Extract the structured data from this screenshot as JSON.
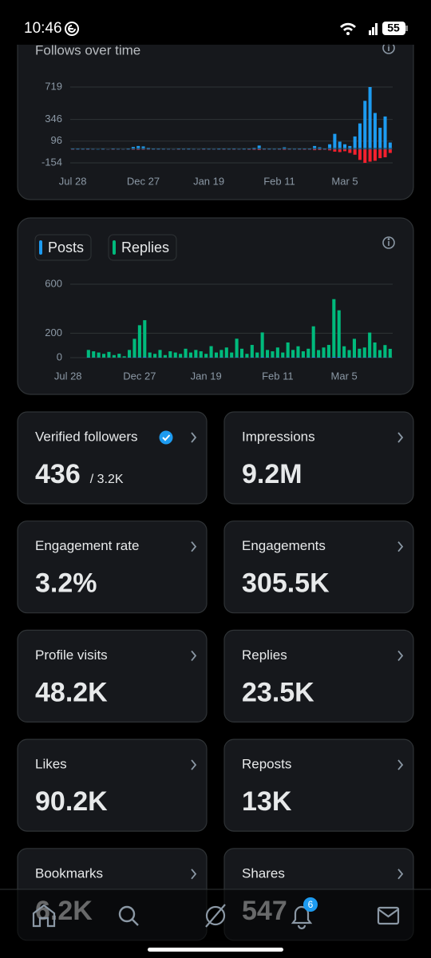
{
  "status": {
    "time": "10:46",
    "battery": "55"
  },
  "follows_chart": {
    "type": "bar",
    "title": "Follows over time",
    "categories": [
      "Jul 28",
      null,
      null,
      null,
      null,
      null,
      null,
      null,
      null,
      null,
      null,
      null,
      null,
      null,
      "Dec 27",
      null,
      null,
      null,
      null,
      null,
      null,
      null,
      null,
      null,
      null,
      null,
      null,
      "Jan 19",
      null,
      null,
      null,
      null,
      null,
      null,
      null,
      null,
      null,
      null,
      null,
      null,
      null,
      "Feb 11",
      null,
      null,
      null,
      null,
      null,
      null,
      null,
      null,
      null,
      null,
      null,
      null,
      "Mar 5",
      null,
      null,
      null,
      null,
      null,
      null,
      null,
      null,
      null
    ],
    "series": [
      {
        "color": "#1d9bf0",
        "values": [
          10,
          8,
          6,
          12,
          5,
          4,
          6,
          3,
          15,
          5,
          4,
          8,
          30,
          40,
          35,
          20,
          10,
          8,
          6,
          5,
          4,
          12,
          6,
          8,
          5,
          4,
          10,
          6,
          5,
          8,
          12,
          6,
          10,
          5,
          8,
          15,
          20,
          45,
          12,
          8,
          6,
          10,
          25,
          8,
          6,
          10,
          15,
          12,
          40,
          25,
          10,
          60,
          180,
          90,
          60,
          40,
          150,
          300,
          560,
          719,
          420,
          250,
          380,
          80
        ]
      },
      {
        "color": "#f4212e",
        "values": [
          -2,
          -1,
          -1,
          -2,
          -1,
          0,
          -1,
          -1,
          -2,
          -1,
          -1,
          -1,
          -3,
          -4,
          -3,
          -2,
          -1,
          -1,
          -1,
          -1,
          -1,
          -2,
          -1,
          -1,
          -1,
          -1,
          -2,
          -1,
          -1,
          -1,
          -2,
          -1,
          -2,
          -1,
          -1,
          -3,
          -4,
          -6,
          -2,
          -1,
          -1,
          -2,
          -4,
          -2,
          -1,
          -2,
          -3,
          -2,
          -8,
          -6,
          -3,
          -10,
          -25,
          -30,
          -20,
          -40,
          -60,
          -120,
          -154,
          -140,
          -130,
          -100,
          -90,
          -40
        ]
      }
    ],
    "ylim": [
      -154,
      719
    ],
    "yticks": [
      719,
      346,
      96,
      -154
    ],
    "grid": true
  },
  "posts_chart": {
    "type": "bar",
    "categories": [
      "Jul 28",
      null,
      null,
      null,
      null,
      null,
      null,
      null,
      null,
      null,
      null,
      null,
      null,
      null,
      "Dec 27",
      null,
      null,
      null,
      null,
      null,
      null,
      null,
      null,
      null,
      null,
      null,
      null,
      "Jan 19",
      null,
      null,
      null,
      null,
      null,
      null,
      null,
      null,
      null,
      null,
      null,
      null,
      null,
      "Feb 11",
      null,
      null,
      null,
      null,
      null,
      null,
      null,
      null,
      null,
      null,
      null,
      null,
      "Mar 5",
      null,
      null,
      null,
      null,
      null,
      null,
      null,
      null,
      null
    ],
    "series": [
      {
        "name": "Posts",
        "color": "#1d9bf0",
        "values": [
          0,
          0,
          0,
          0,
          3,
          2,
          2,
          1,
          2,
          1,
          2,
          1,
          3,
          4,
          5,
          6,
          2,
          1,
          3,
          1,
          2,
          2,
          1,
          3,
          2,
          3,
          2,
          1,
          4,
          2,
          3,
          3,
          2,
          5,
          3,
          1,
          4,
          2,
          6,
          3,
          2,
          3,
          2,
          4,
          3,
          3,
          2,
          3,
          6,
          2,
          3,
          4,
          8,
          7,
          3,
          2,
          4,
          3,
          3,
          5,
          4,
          2,
          3,
          2
        ]
      },
      {
        "name": "Replies",
        "color": "#00ba7c",
        "values": [
          0,
          0,
          0,
          0,
          60,
          50,
          40,
          30,
          45,
          20,
          30,
          10,
          60,
          150,
          260,
          300,
          40,
          30,
          60,
          20,
          50,
          40,
          30,
          70,
          40,
          60,
          50,
          30,
          90,
          40,
          60,
          80,
          40,
          150,
          70,
          30,
          100,
          40,
          200,
          60,
          50,
          80,
          40,
          120,
          60,
          90,
          50,
          70,
          250,
          60,
          80,
          100,
          470,
          380,
          90,
          60,
          150,
          70,
          80,
          200,
          120,
          60,
          100,
          70
        ]
      }
    ],
    "ylim": [
      0,
      600
    ],
    "yticks": [
      600,
      200,
      0
    ],
    "grid": true
  },
  "stats": [
    {
      "label": "Verified followers",
      "value": "436",
      "sub": "/ 3.2K"
    },
    {
      "label": "Impressions",
      "value": "9.2M"
    },
    {
      "label": "Engagement rate",
      "value": "3.2%"
    },
    {
      "label": "Engagements",
      "value": "305.5K"
    },
    {
      "label": "Profile visits",
      "value": "48.2K"
    },
    {
      "label": "Replies",
      "value": "23.5K"
    },
    {
      "label": "Likes",
      "value": "90.2K"
    },
    {
      "label": "Reposts",
      "value": "13K"
    },
    {
      "label": "Bookmarks",
      "value": "6.2K"
    },
    {
      "label": "Shares",
      "value": "547"
    }
  ],
  "nav": {
    "badge": "6"
  }
}
